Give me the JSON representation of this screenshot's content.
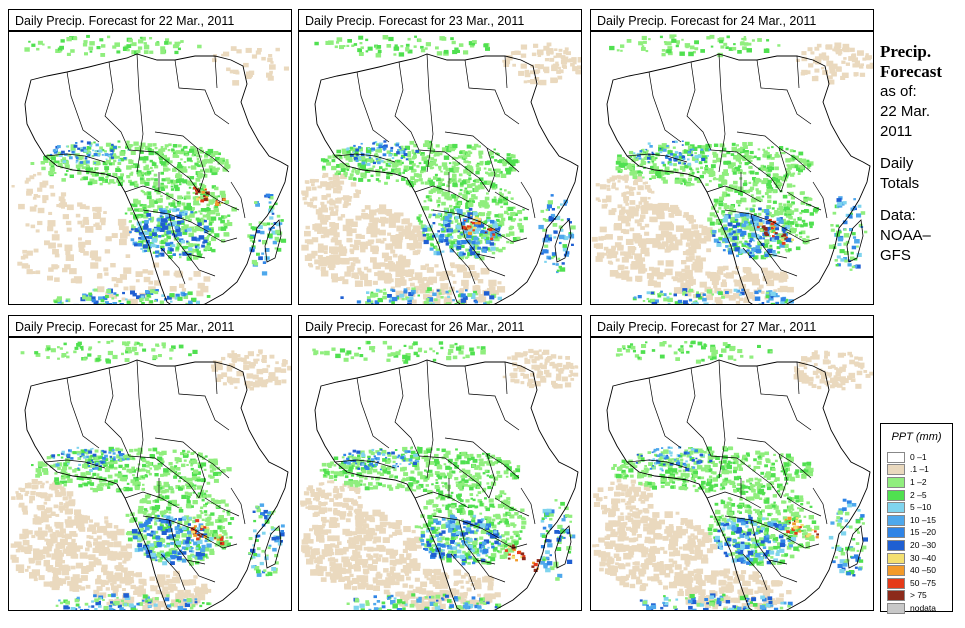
{
  "panels": [
    {
      "title": "Daily Precip. Forecast for  22 Mar., 2011"
    },
    {
      "title": "Daily Precip. Forecast for  23 Mar., 2011"
    },
    {
      "title": "Daily Precip. Forecast for  24 Mar., 2011"
    },
    {
      "title": "Daily Precip. Forecast for  25 Mar., 2011"
    },
    {
      "title": "Daily Precip. Forecast for  26 Mar., 2011"
    },
    {
      "title": "Daily Precip. Forecast for  27 Mar., 2011"
    }
  ],
  "side": {
    "title_line1": "Precip.",
    "title_line2": "Forecast",
    "asof_line1": "as of:",
    "asof_line2": "22 Mar.",
    "asof_line3": "2011",
    "totals_line1": "Daily",
    "totals_line2": "Totals",
    "data_line1": "Data:",
    "data_line2": "NOAA–",
    "data_line3": "GFS"
  },
  "legend": {
    "title": "PPT (mm)",
    "items": [
      {
        "label": "0 –1",
        "color": "#ffffff"
      },
      {
        "label": ".1 –1",
        "color": "#ead9be"
      },
      {
        "label": "1 –2",
        "color": "#90ee7e"
      },
      {
        "label": "2 –5",
        "color": "#50e050"
      },
      {
        "label": "5 –10",
        "color": "#7fd4ee"
      },
      {
        "label": "10 –15",
        "color": "#4ea8ec"
      },
      {
        "label": "15 –20",
        "color": "#2f84e6"
      },
      {
        "label": "20 –30",
        "color": "#1f5fd2"
      },
      {
        "label": "30 –40",
        "color": "#f4e070"
      },
      {
        "label": "40 –50",
        "color": "#f39a2a"
      },
      {
        "label": "50 –75",
        "color": "#e53a18"
      },
      {
        "label": "> 75",
        "color": "#8c2a1a"
      },
      {
        "label": "nodata",
        "color": "#c8c8c8"
      }
    ]
  }
}
